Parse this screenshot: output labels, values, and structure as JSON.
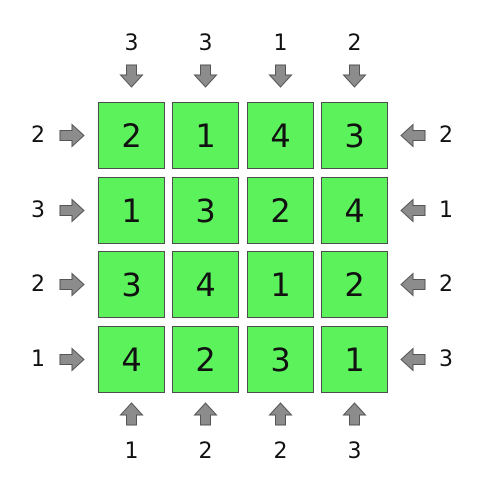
{
  "puzzle": {
    "grid": [
      [
        "2",
        "1",
        "4",
        "3"
      ],
      [
        "1",
        "3",
        "2",
        "4"
      ],
      [
        "3",
        "4",
        "1",
        "2"
      ],
      [
        "4",
        "2",
        "3",
        "1"
      ]
    ],
    "clues": {
      "top": [
        "3",
        "3",
        "1",
        "2"
      ],
      "bottom": [
        "1",
        "2",
        "2",
        "3"
      ],
      "left": [
        "2",
        "3",
        "2",
        "1"
      ],
      "right": [
        "2",
        "1",
        "2",
        "3"
      ]
    },
    "colors": {
      "cell_fill": "#5cf25c",
      "cell_border": "#4d4d4d",
      "arrow_fill": "#8c8c8c",
      "arrow_stroke": "#555555",
      "text": "#111111"
    },
    "icons": {
      "top": "arrow-down-icon",
      "bottom": "arrow-up-icon",
      "left": "arrow-right-icon",
      "right": "arrow-left-icon"
    }
  }
}
